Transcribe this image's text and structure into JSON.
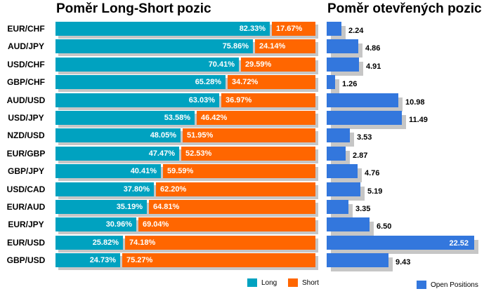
{
  "left_title": "Poměr Long-Short pozic",
  "right_title": "Poměr otevřených pozic",
  "colors": {
    "long": "#00A2C0",
    "short": "#FF6600",
    "open": "#3377DD",
    "shadow": "#C6C6C6"
  },
  "legend": {
    "long_label": "Long",
    "short_label": "Short",
    "open_label": "Open Positions"
  },
  "chart_data": [
    {
      "type": "bar",
      "orientation": "horizontal",
      "stacked": true,
      "title": "Poměr Long-Short pozic",
      "categories": [
        "EUR/CHF",
        "AUD/JPY",
        "USD/CHF",
        "GBP/CHF",
        "AUD/USD",
        "USD/JPY",
        "NZD/USD",
        "EUR/GBP",
        "GBP/JPY",
        "USD/CAD",
        "EUR/AUD",
        "EUR/JPY",
        "EUR/USD",
        "GBP/USD"
      ],
      "series": [
        {
          "name": "Long",
          "values": [
            82.33,
            75.86,
            70.41,
            65.28,
            63.03,
            53.58,
            48.05,
            47.47,
            40.41,
            37.8,
            35.19,
            30.96,
            25.82,
            24.73
          ]
        },
        {
          "name": "Short",
          "values": [
            17.67,
            24.14,
            29.59,
            34.72,
            36.97,
            46.42,
            51.95,
            52.53,
            59.59,
            62.2,
            64.81,
            69.04,
            74.18,
            75.27
          ]
        }
      ],
      "value_labels": {
        "Long": [
          "82.33%",
          "75.86%",
          "70.41%",
          "65.28%",
          "63.03%",
          "53.58%",
          "48.05%",
          "47.47%",
          "40.41%",
          "37.80%",
          "35.19%",
          "30.96%",
          "25.82%",
          "24.73%"
        ],
        "Short": [
          "17.67%",
          "24.14%",
          "29.59%",
          "34.72%",
          "36.97%",
          "46.42%",
          "51.95%",
          "52.53%",
          "59.59%",
          "62.20%",
          "64.81%",
          "69.04%",
          "74.18%",
          "75.27%"
        ]
      },
      "xlim": [
        0,
        100
      ],
      "legend_position": "bottom-right",
      "grid": false
    },
    {
      "type": "bar",
      "orientation": "horizontal",
      "title": "Poměr otevřených pozic",
      "categories": [
        "EUR/CHF",
        "AUD/JPY",
        "USD/CHF",
        "GBP/CHF",
        "AUD/USD",
        "USD/JPY",
        "NZD/USD",
        "EUR/GBP",
        "GBP/JPY",
        "USD/CAD",
        "EUR/AUD",
        "EUR/JPY",
        "EUR/USD",
        "GBP/USD"
      ],
      "series": [
        {
          "name": "Open Positions",
          "values": [
            2.24,
            4.86,
            4.91,
            1.26,
            10.98,
            11.49,
            3.53,
            2.87,
            4.76,
            5.19,
            3.35,
            6.5,
            22.52,
            9.43
          ]
        }
      ],
      "value_labels": [
        "2.24",
        "4.86",
        "4.91",
        "1.26",
        "10.98",
        "11.49",
        "3.53",
        "2.87",
        "4.76",
        "5.19",
        "3.35",
        "6.50",
        "22.52",
        "9.43"
      ],
      "xlim": [
        0,
        22.52
      ],
      "legend_position": "bottom-right",
      "grid": false
    }
  ]
}
